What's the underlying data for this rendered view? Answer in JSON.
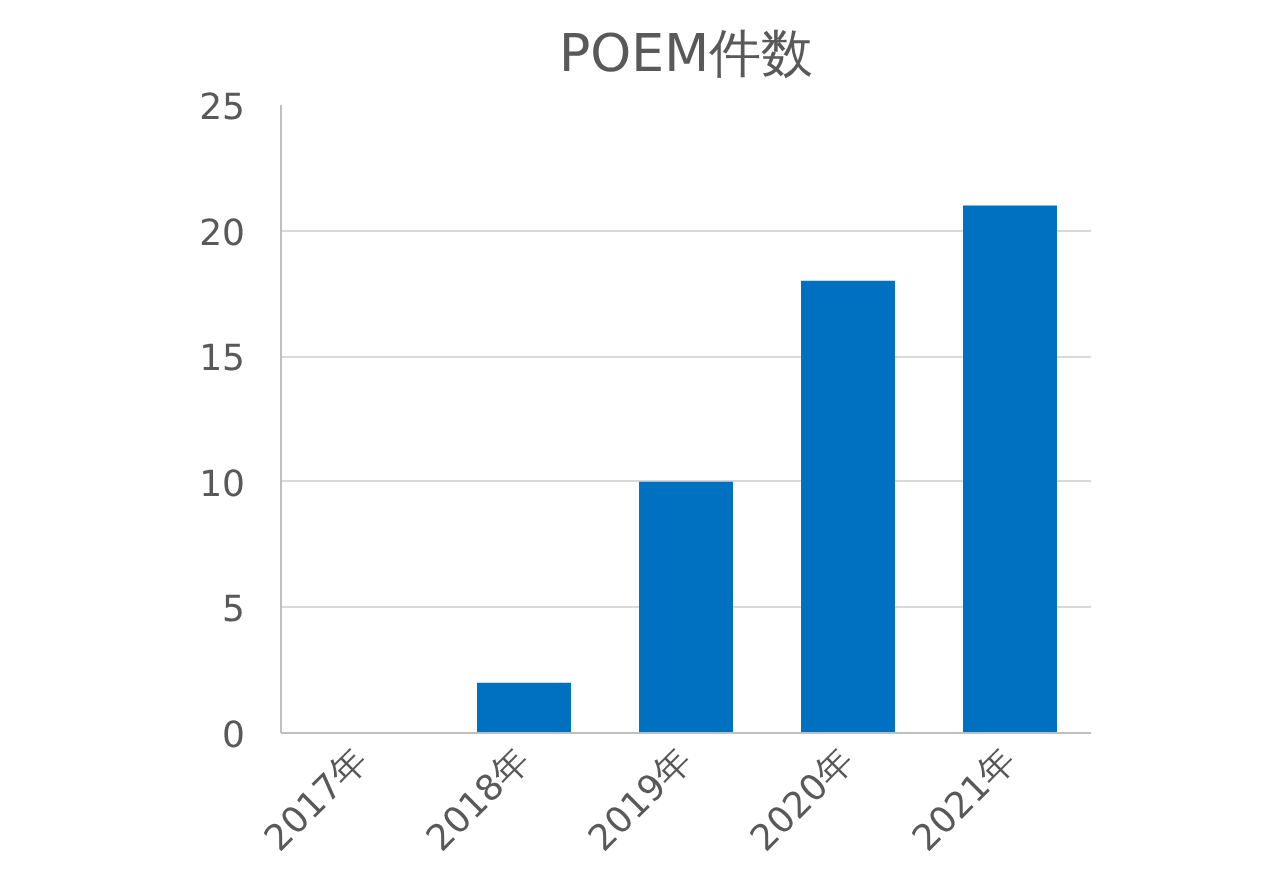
{
  "chart_data": {
    "type": "bar",
    "title": "POEM件数",
    "categories": [
      "2017年",
      "2018年",
      "2019年",
      "2020年",
      "2021年"
    ],
    "values": [
      0,
      2,
      10,
      18,
      21
    ],
    "color": "#0070c0",
    "ylim": [
      0,
      25
    ],
    "yticks": [
      0,
      5,
      10,
      15,
      20,
      25
    ],
    "grid": "y"
  }
}
